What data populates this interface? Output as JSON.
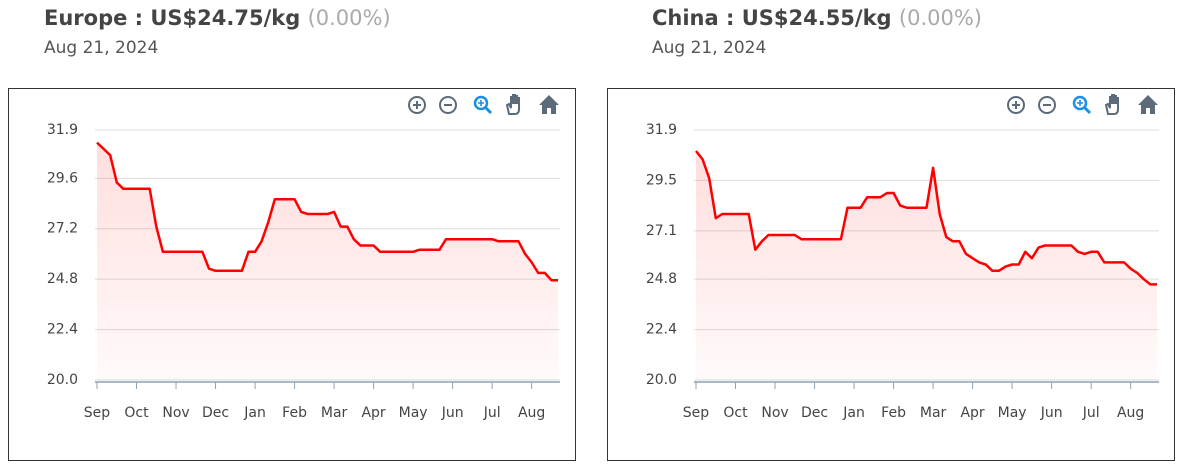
{
  "chart_data": [
    {
      "type": "line",
      "title": "Europe : US$24.75/kg",
      "change": "(0.00%)",
      "subtitle": "Aug 21, 2024",
      "categories": [
        "Sep",
        null,
        null,
        null,
        null,
        null,
        "Oct",
        null,
        null,
        null,
        null,
        null,
        "Nov",
        null,
        null,
        null,
        null,
        null,
        "Dec",
        null,
        null,
        null,
        null,
        null,
        "Jan",
        null,
        null,
        null,
        null,
        null,
        "Feb",
        null,
        null,
        null,
        null,
        null,
        "Mar",
        null,
        null,
        null,
        null,
        null,
        "Apr",
        null,
        null,
        null,
        null,
        null,
        "May",
        null,
        null,
        null,
        null,
        null,
        "Jun",
        null,
        null,
        null,
        null,
        null,
        "Jul",
        null,
        null,
        null,
        null,
        null,
        "Aug",
        null,
        null,
        null,
        null
      ],
      "values": [
        31.3,
        31.0,
        30.7,
        29.4,
        29.1,
        29.1,
        29.1,
        29.1,
        29.1,
        27.3,
        26.1,
        26.1,
        26.1,
        26.1,
        26.1,
        26.1,
        26.1,
        25.3,
        25.2,
        25.2,
        25.2,
        25.2,
        25.2,
        26.1,
        26.1,
        26.6,
        27.5,
        28.6,
        28.6,
        28.6,
        28.6,
        28.0,
        27.9,
        27.9,
        27.9,
        27.9,
        28.0,
        27.3,
        27.3,
        26.7,
        26.4,
        26.4,
        26.4,
        26.1,
        26.1,
        26.1,
        26.1,
        26.1,
        26.1,
        26.2,
        26.2,
        26.2,
        26.2,
        26.7,
        26.7,
        26.7,
        26.7,
        26.7,
        26.7,
        26.7,
        26.7,
        26.6,
        26.6,
        26.6,
        26.6,
        26.0,
        25.6,
        25.1,
        25.1,
        24.75,
        24.75
      ],
      "color": "#ff0000",
      "ylim": [
        20,
        31.9
      ],
      "yticks": [
        {
          "value": 20,
          "label": "20.0"
        },
        22.4,
        24.8,
        27.2,
        29.6,
        31.9
      ],
      "grid": true
    },
    {
      "type": "line",
      "title": "China : US$24.55/kg",
      "change": "(0.00%)",
      "subtitle": "Aug 21, 2024",
      "categories": [
        "Sep",
        null,
        null,
        null,
        null,
        null,
        "Oct",
        null,
        null,
        null,
        null,
        null,
        "Nov",
        null,
        null,
        null,
        null,
        null,
        "Dec",
        null,
        null,
        null,
        null,
        null,
        "Jan",
        null,
        null,
        null,
        null,
        null,
        "Feb",
        null,
        null,
        null,
        null,
        null,
        "Mar",
        null,
        null,
        null,
        null,
        null,
        "Apr",
        null,
        null,
        null,
        null,
        null,
        "May",
        null,
        null,
        null,
        null,
        null,
        "Jun",
        null,
        null,
        null,
        null,
        null,
        "Jul",
        null,
        null,
        null,
        null,
        null,
        "Aug",
        null,
        null,
        null,
        null
      ],
      "values": [
        30.9,
        30.5,
        29.6,
        27.7,
        27.9,
        27.9,
        27.9,
        27.9,
        27.9,
        26.2,
        26.6,
        26.9,
        26.9,
        26.9,
        26.9,
        26.9,
        26.7,
        26.7,
        26.7,
        26.7,
        26.7,
        26.7,
        26.7,
        28.2,
        28.2,
        28.2,
        28.7,
        28.7,
        28.7,
        28.9,
        28.9,
        28.3,
        28.2,
        28.2,
        28.2,
        28.2,
        30.1,
        27.9,
        26.8,
        26.6,
        26.6,
        26.0,
        25.8,
        25.6,
        25.5,
        25.2,
        25.2,
        25.4,
        25.5,
        25.5,
        26.1,
        25.8,
        26.3,
        26.4,
        26.4,
        26.4,
        26.4,
        26.4,
        26.1,
        26.0,
        26.1,
        26.1,
        25.6,
        25.6,
        25.6,
        25.6,
        25.3,
        25.1,
        24.8,
        24.55,
        24.55
      ],
      "color": "#ff0000",
      "ylim": [
        20,
        31.9
      ],
      "yticks": [
        {
          "value": 20,
          "label": "20.0"
        },
        22.4,
        24.8,
        27.1,
        29.5,
        31.9
      ],
      "grid": true
    }
  ]
}
